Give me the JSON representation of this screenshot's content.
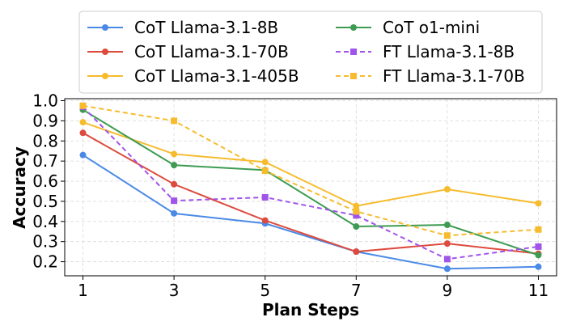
{
  "chart_data": {
    "type": "line",
    "title": "",
    "xlabel": "Plan Steps",
    "ylabel": "Accuracy",
    "x": [
      1,
      3,
      5,
      7,
      9,
      11
    ],
    "xticks": [
      "1",
      "3",
      "5",
      "7",
      "9",
      "11"
    ],
    "yticks": [
      "0.2",
      "0.3",
      "0.4",
      "0.5",
      "0.6",
      "0.7",
      "0.8",
      "0.9",
      "1.0"
    ],
    "ylim": [
      0.13,
      1.01
    ],
    "xlim": [
      0.6,
      11.4
    ],
    "grid": true,
    "legend_position": "top-center",
    "series": [
      {
        "name": "CoT Llama-3.1-8B",
        "color": "#4a8ae6",
        "dashed": false,
        "marker": "circle",
        "values": [
          0.73,
          0.44,
          0.39,
          0.25,
          0.165,
          0.175
        ]
      },
      {
        "name": "CoT Llama-3.1-70B",
        "color": "#dd4b3e",
        "dashed": false,
        "marker": "circle",
        "values": [
          0.84,
          0.585,
          0.405,
          0.25,
          0.29,
          0.24
        ]
      },
      {
        "name": "CoT Llama-3.1-405B",
        "color": "#f6bc2e",
        "dashed": false,
        "marker": "circle",
        "values": [
          0.893,
          0.735,
          0.695,
          0.477,
          0.56,
          0.49
        ]
      },
      {
        "name": "CoT o1-mini",
        "color": "#3e9c52",
        "dashed": false,
        "marker": "circle",
        "values": [
          0.955,
          0.68,
          0.655,
          0.375,
          0.383,
          0.233
        ]
      },
      {
        "name": "FT Llama-3.1-8B",
        "color": "#a154ea",
        "dashed": true,
        "marker": "square",
        "values": [
          0.97,
          0.503,
          0.52,
          0.43,
          0.213,
          0.275
        ]
      },
      {
        "name": "FT Llama-3.1-70B",
        "color": "#f6bc2e",
        "dashed": true,
        "marker": "square",
        "values": [
          0.975,
          0.9,
          0.652,
          0.45,
          0.33,
          0.36
        ]
      }
    ]
  }
}
